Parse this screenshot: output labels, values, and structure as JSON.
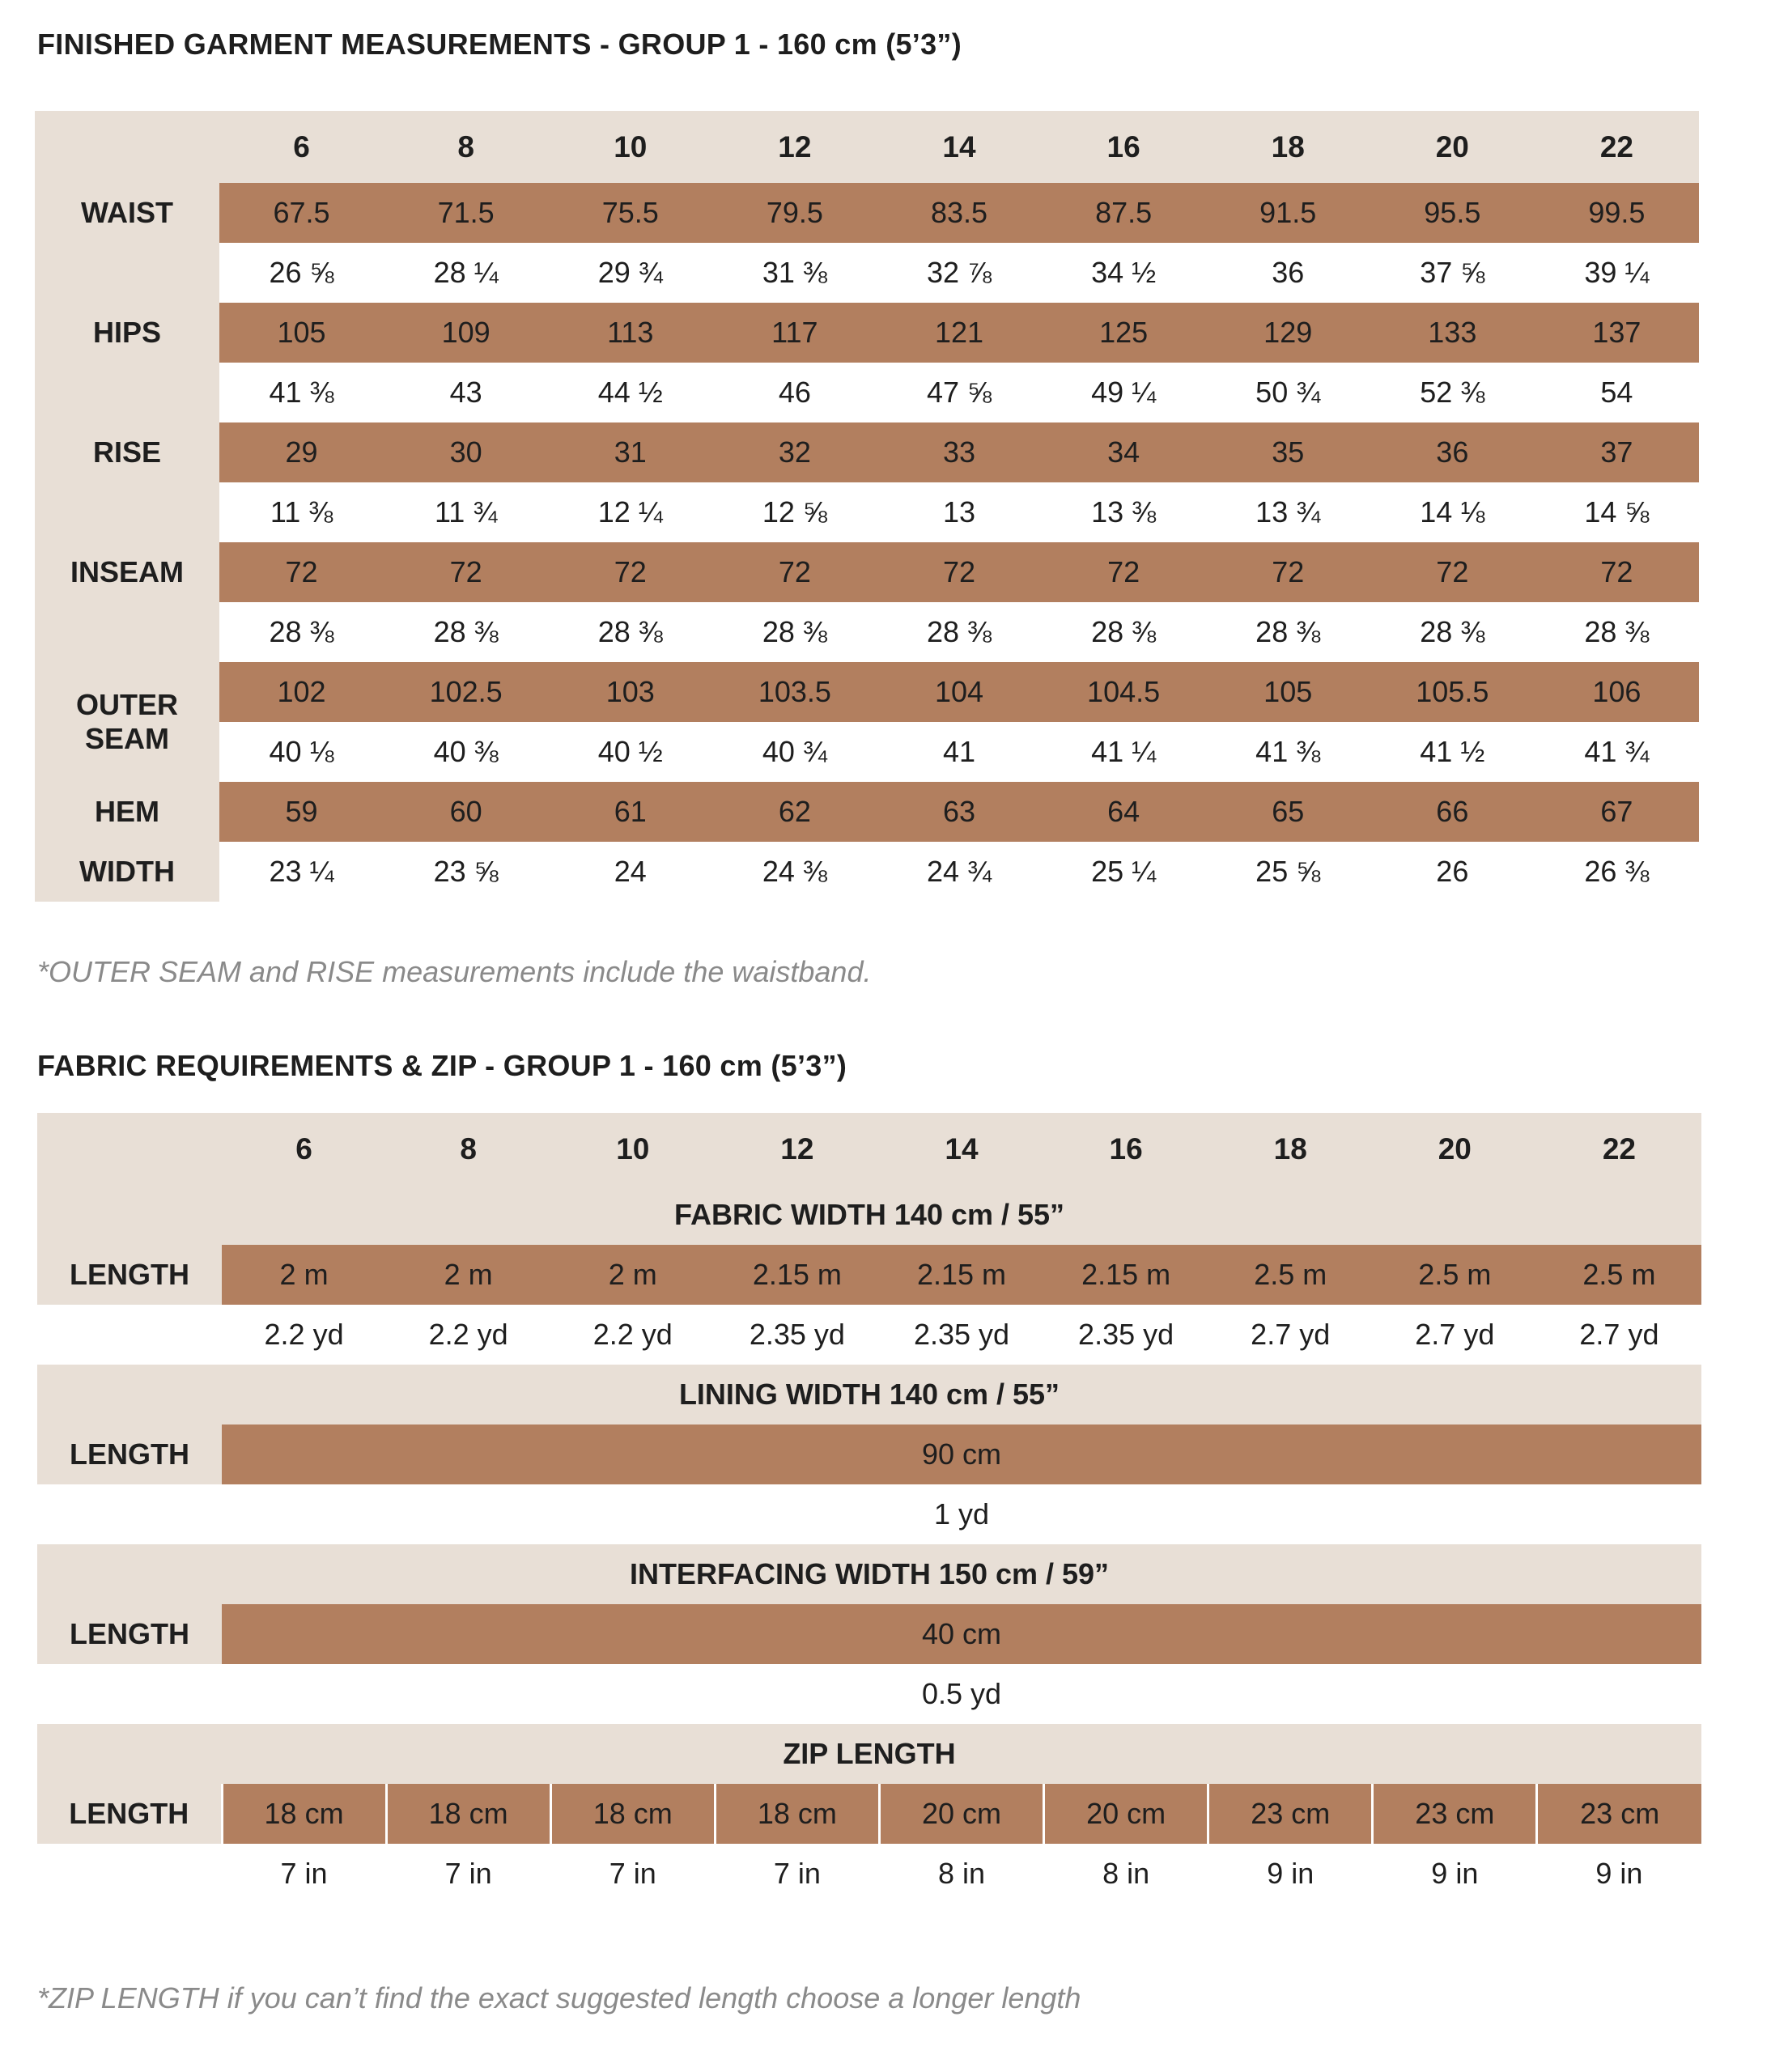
{
  "table1": {
    "title": "FINISHED GARMENT MEASUREMENTS - GROUP 1 - 160 cm (5’3”)",
    "sizes": [
      "6",
      "8",
      "10",
      "12",
      "14",
      "16",
      "18",
      "20",
      "22"
    ],
    "rows": [
      {
        "label": "WAIST",
        "cm": [
          "67.5",
          "71.5",
          "75.5",
          "79.5",
          "83.5",
          "87.5",
          "91.5",
          "95.5",
          "99.5"
        ],
        "in": [
          "26 ⅝",
          "28 ¼",
          "29 ¾",
          "31 ⅜",
          "32 ⅞",
          "34 ½",
          "36",
          "37 ⅝",
          "39 ¼"
        ]
      },
      {
        "label": "HIPS",
        "cm": [
          "105",
          "109",
          "113",
          "117",
          "121",
          "125",
          "129",
          "133",
          "137"
        ],
        "in": [
          "41 ⅜",
          "43",
          "44 ½",
          "46",
          "47 ⅝",
          "49 ¼",
          "50 ¾",
          "52 ⅜",
          "54"
        ]
      },
      {
        "label": "RISE",
        "cm": [
          "29",
          "30",
          "31",
          "32",
          "33",
          "34",
          "35",
          "36",
          "37"
        ],
        "in": [
          "11 ⅜",
          "11 ¾",
          "12 ¼",
          "12 ⅝",
          "13",
          "13 ⅜",
          "13 ¾",
          "14 ⅛",
          "14 ⅝"
        ]
      },
      {
        "label": "INSEAM",
        "cm": [
          "72",
          "72",
          "72",
          "72",
          "72",
          "72",
          "72",
          "72",
          "72"
        ],
        "in": [
          "28 ⅜",
          "28 ⅜",
          "28 ⅜",
          "28 ⅜",
          "28 ⅜",
          "28 ⅜",
          "28 ⅜",
          "28 ⅜",
          "28 ⅜"
        ]
      },
      {
        "label": "OUTER SEAM",
        "merged_label": true,
        "cm": [
          "102",
          "102.5",
          "103",
          "103.5",
          "104",
          "104.5",
          "105",
          "105.5",
          "106"
        ],
        "in": [
          "40 ⅛",
          "40 ⅜",
          "40 ½",
          "40 ¾",
          "41",
          "41 ¼",
          "41 ⅜",
          "41 ½",
          "41 ¾"
        ]
      },
      {
        "label": "HEM",
        "label2": "WIDTH",
        "cm": [
          "59",
          "60",
          "61",
          "62",
          "63",
          "64",
          "65",
          "66",
          "67"
        ],
        "in": [
          "23 ¼",
          "23 ⅝",
          "24",
          "24 ⅜",
          "24 ¾",
          "25 ¼",
          "25 ⅝",
          "26",
          "26 ⅜"
        ]
      }
    ],
    "note": "*OUTER SEAM and RISE measurements include the waistband."
  },
  "table2": {
    "title": "FABRIC REQUIREMENTS & ZIP - GROUP 1 - 160 cm (5’3”)",
    "sizes": [
      "6",
      "8",
      "10",
      "12",
      "14",
      "16",
      "18",
      "20",
      "22"
    ],
    "sections": [
      {
        "header": "FABRIC WIDTH 140 cm / 55”",
        "label": "LENGTH",
        "metric": [
          "2 m",
          "2 m",
          "2 m",
          "2.15 m",
          "2.15 m",
          "2.15 m",
          "2.5 m",
          "2.5 m",
          "2.5 m"
        ],
        "imperial": [
          "2.2 yd",
          "2.2 yd",
          "2.2 yd",
          "2.35 yd",
          "2.35 yd",
          "2.35 yd",
          "2.7 yd",
          "2.7 yd",
          "2.7 yd"
        ]
      },
      {
        "header": "LINING WIDTH 140 cm / 55”",
        "label": "LENGTH",
        "metric": "90 cm",
        "imperial": "1 yd"
      },
      {
        "header": "INTERFACING WIDTH 150 cm / 59”",
        "label": "LENGTH",
        "metric": "40 cm",
        "imperial": "0.5 yd"
      },
      {
        "header": "ZIP LENGTH",
        "label": "LENGTH",
        "zip": true,
        "metric": [
          "18 cm",
          "18 cm",
          "18 cm",
          "18 cm",
          "20 cm",
          "20 cm",
          "23 cm",
          "23 cm",
          "23 cm"
        ],
        "imperial": [
          "7 in",
          "7 in",
          "7 in",
          "7 in",
          "8 in",
          "8 in",
          "9 in",
          "9 in",
          "9 in"
        ]
      }
    ],
    "note": "*ZIP LENGTH if you can’t find the exact suggested length choose a longer length"
  },
  "colors": {
    "beige": "#e8dfd6",
    "brown": "#b27f5f",
    "note": "#8a8a8a"
  }
}
